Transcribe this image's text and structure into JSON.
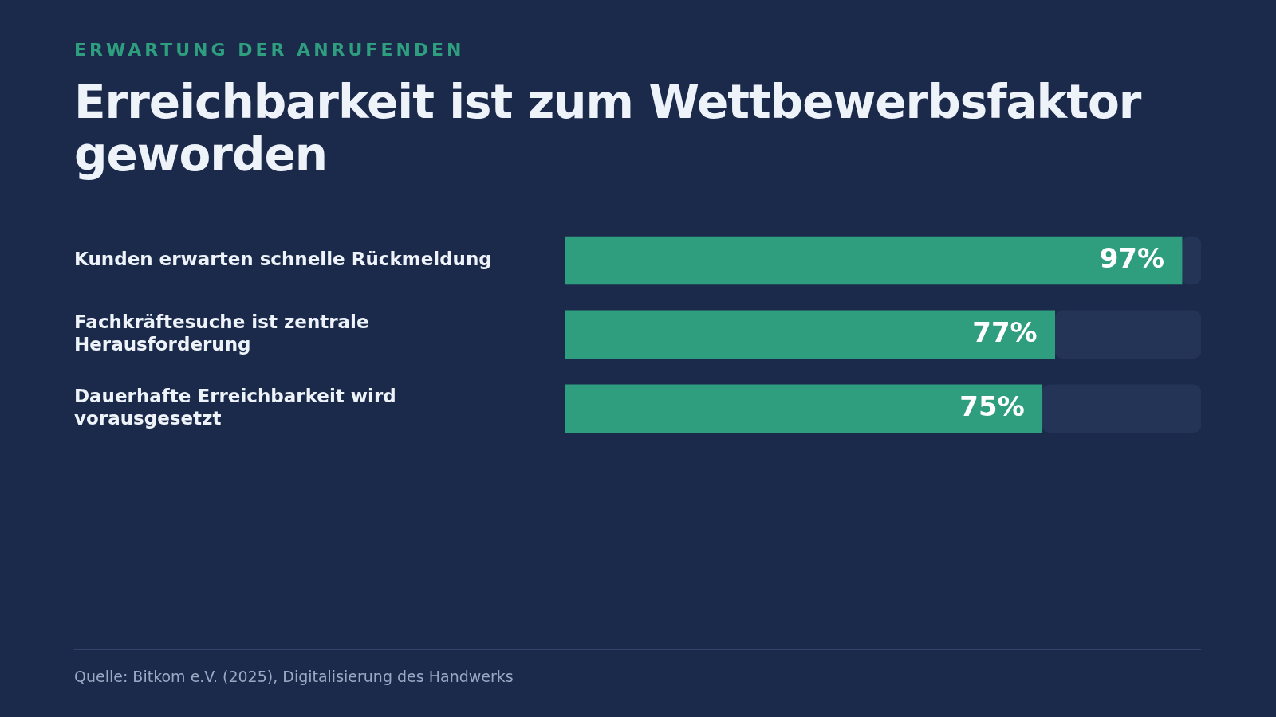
{
  "chart_data": {
    "type": "bar",
    "orientation": "horizontal",
    "subtitle": "ERWARTUNG DER ANRUFENDEN",
    "title": "Erreichbarkeit ist zum Wettbewerbsfaktor geworden",
    "categories": [
      "Kunden erwarten schnelle Rückmeldung",
      "Fachkräftesuche ist zentrale Herausforderung",
      "Dauerhafte Erreichbarkeit wird vorausgesetzt"
    ],
    "stacked": true,
    "series": [
      {
        "color": "#2e9e7f",
        "values": [
          97,
          77,
          75
        ],
        "value_labels": [
          "97%",
          "77%",
          "75%"
        ]
      },
      {
        "color": "#233457",
        "values": [
          3,
          23,
          25
        ]
      }
    ],
    "xlim": [
      0,
      100
    ],
    "tick_labels": "y",
    "legend": false,
    "annotations": [
      "Quelle: Bitkom e.V. (2025), Digitalisierung des Handwerks"
    ]
  }
}
